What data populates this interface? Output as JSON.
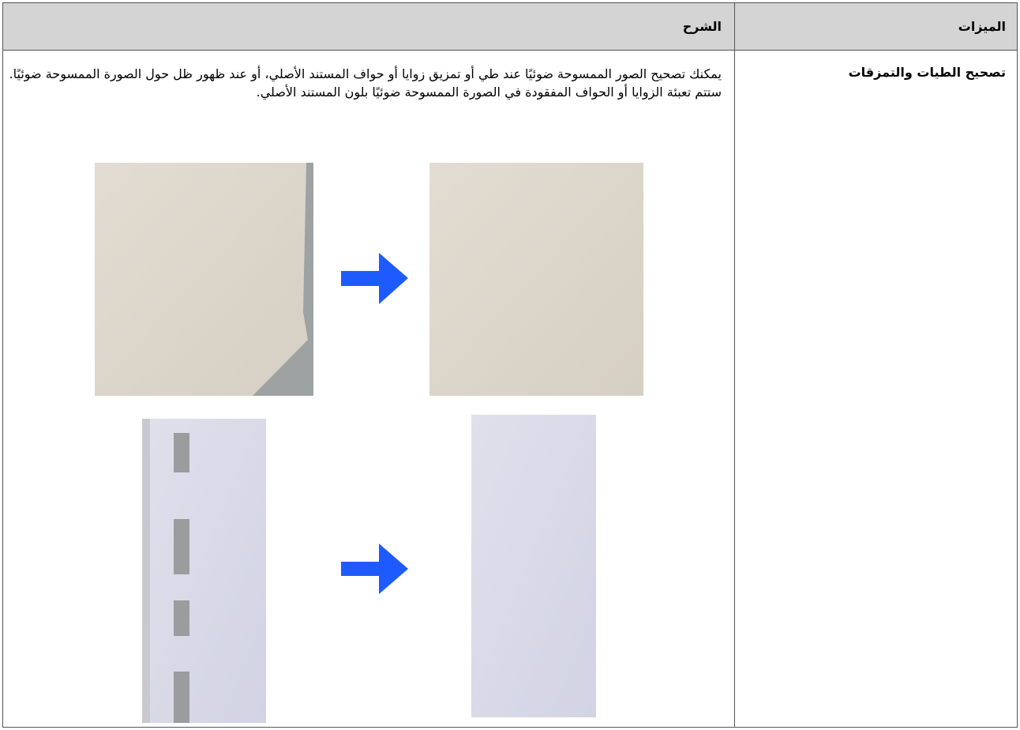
{
  "table": {
    "header": [
      "الميزات",
      "الشرح"
    ],
    "rows": [
      {
        "feature": "تصحيح الطيات والتمزقات",
        "description": "يمكنك تصحيح الصور الممسوحة ضوئيًا عند طي أو تمزيق زوايا أو حواف المستند الأصلي، أو عند ظهور ظل حول الصورة الممسوحة ضوئيًا. ستتم تعبئة الزوايا أو الحواف المفقودة في الصورة الممسوحة ضوئيًا بلون المستند الأصلي."
      }
    ]
  }
}
